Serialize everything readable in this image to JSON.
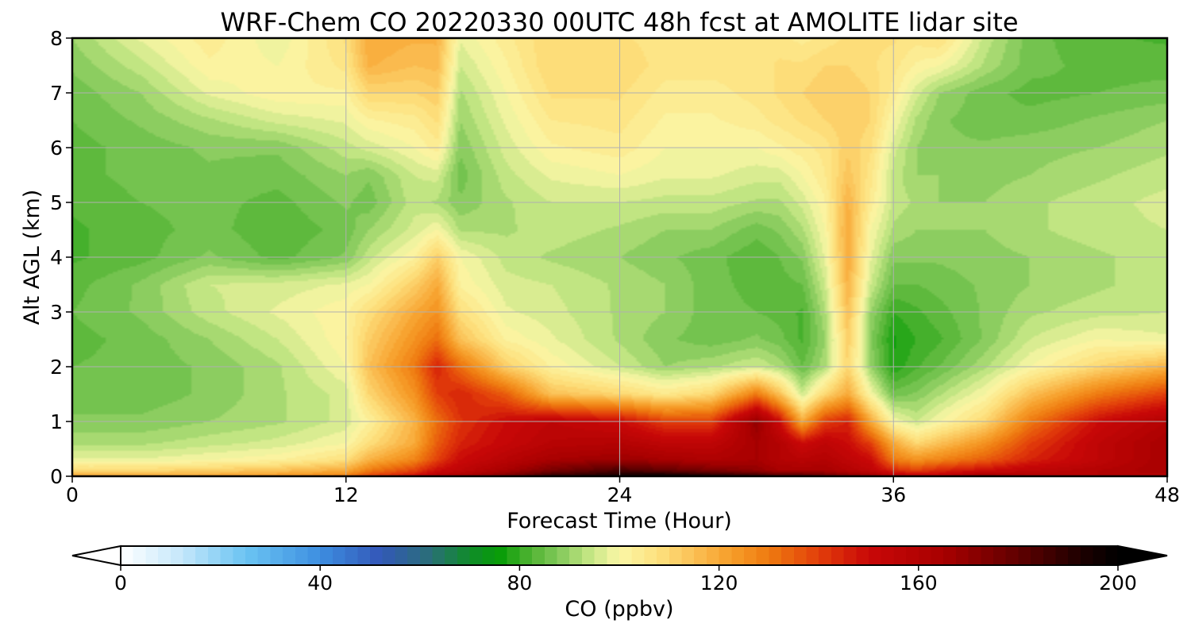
{
  "chart_data": {
    "type": "heatmap",
    "title": "WRF-Chem CO  20220330 00UTC 48h fcst at AMOLITE lidar site",
    "xlabel": "Forecast Time (Hour)",
    "ylabel": "Alt AGL (km)",
    "xlim": [
      0,
      48
    ],
    "ylim": [
      0,
      8
    ],
    "x_ticks": [
      0,
      12,
      24,
      36,
      48
    ],
    "y_ticks": [
      0,
      1,
      2,
      3,
      4,
      5,
      6,
      7,
      8
    ],
    "grid": true,
    "x": [
      0,
      3,
      6,
      9,
      12,
      13,
      15,
      16,
      17,
      19,
      21,
      24,
      26,
      28,
      30,
      31,
      32,
      33,
      34,
      35,
      36,
      37,
      38,
      40,
      42,
      45,
      48
    ],
    "y": [
      0,
      0.1,
      0.3,
      0.6,
      1.0,
      1.5,
      2.0,
      2.5,
      3.0,
      3.5,
      4.0,
      4.5,
      5.0,
      5.5,
      6.0,
      6.5,
      7.0,
      7.5,
      8.0
    ],
    "values": [
      [
        120,
        120,
        122,
        125,
        130,
        140,
        150,
        160,
        165,
        175,
        190,
        195,
        200,
        195,
        190,
        185,
        185,
        180,
        175,
        170,
        160,
        155,
        155,
        170,
        160,
        160,
        160
      ],
      [
        110,
        110,
        112,
        115,
        120,
        130,
        140,
        150,
        155,
        165,
        175,
        185,
        180,
        175,
        170,
        165,
        165,
        165,
        160,
        155,
        145,
        140,
        145,
        150,
        155,
        160,
        165
      ],
      [
        98,
        98,
        100,
        102,
        108,
        118,
        128,
        140,
        150,
        158,
        165,
        168,
        165,
        162,
        165,
        160,
        158,
        160,
        155,
        150,
        130,
        125,
        128,
        135,
        145,
        155,
        165
      ],
      [
        92,
        92,
        94,
        96,
        100,
        108,
        120,
        135,
        145,
        152,
        158,
        160,
        155,
        155,
        165,
        160,
        150,
        155,
        150,
        140,
        120,
        110,
        115,
        125,
        140,
        155,
        165
      ],
      [
        88,
        88,
        90,
        92,
        96,
        102,
        118,
        132,
        142,
        150,
        155,
        150,
        140,
        140,
        170,
        150,
        120,
        140,
        145,
        120,
        100,
        95,
        100,
        110,
        130,
        150,
        160
      ],
      [
        86,
        86,
        88,
        92,
        96,
        110,
        125,
        140,
        145,
        135,
        115,
        110,
        105,
        110,
        130,
        115,
        95,
        110,
        120,
        100,
        86,
        88,
        92,
        100,
        115,
        130,
        140
      ],
      [
        85,
        86,
        88,
        92,
        100,
        115,
        130,
        145,
        132,
        112,
        102,
        95,
        90,
        92,
        95,
        92,
        85,
        92,
        110,
        90,
        78,
        82,
        85,
        92,
        100,
        110,
        118
      ],
      [
        84,
        86,
        90,
        95,
        102,
        112,
        125,
        132,
        115,
        102,
        98,
        92,
        88,
        86,
        88,
        86,
        82,
        90,
        112,
        88,
        77,
        80,
        82,
        88,
        95,
        100,
        98
      ],
      [
        85,
        88,
        94,
        98,
        102,
        108,
        120,
        125,
        108,
        98,
        96,
        92,
        90,
        86,
        85,
        84,
        82,
        92,
        115,
        90,
        80,
        82,
        84,
        88,
        92,
        94,
        95
      ],
      [
        84,
        88,
        95,
        96,
        98,
        100,
        112,
        120,
        102,
        96,
        95,
        92,
        90,
        86,
        84,
        84,
        85,
        95,
        118,
        95,
        85,
        85,
        86,
        88,
        90,
        92,
        94
      ],
      [
        82,
        84,
        88,
        84,
        88,
        94,
        102,
        112,
        100,
        94,
        92,
        90,
        88,
        86,
        83,
        85,
        88,
        98,
        120,
        98,
        88,
        88,
        88,
        89,
        90,
        92,
        94
      ],
      [
        82,
        84,
        86,
        83,
        86,
        90,
        96,
        100,
        92,
        92,
        94,
        92,
        90,
        90,
        86,
        88,
        92,
        100,
        120,
        100,
        92,
        90,
        90,
        90,
        92,
        94,
        95
      ],
      [
        83,
        85,
        86,
        84,
        88,
        86,
        94,
        92,
        88,
        92,
        95,
        95,
        94,
        94,
        92,
        92,
        96,
        102,
        118,
        104,
        94,
        92,
        90,
        90,
        92,
        94,
        96
      ],
      [
        84,
        86,
        87,
        86,
        90,
        88,
        95,
        96,
        86,
        94,
        98,
        100,
        98,
        98,
        96,
        96,
        100,
        105,
        114,
        106,
        94,
        90,
        90,
        89,
        90,
        92,
        94
      ],
      [
        84,
        86,
        88,
        88,
        94,
        96,
        100,
        104,
        88,
        96,
        102,
        104,
        100,
        100,
        100,
        102,
        104,
        106,
        112,
        108,
        96,
        90,
        88,
        88,
        89,
        90,
        92
      ],
      [
        85,
        88,
        92,
        96,
        98,
        102,
        104,
        108,
        90,
        98,
        105,
        106,
        102,
        102,
        104,
        106,
        108,
        110,
        112,
        110,
        100,
        92,
        88,
        86,
        86,
        88,
        90
      ],
      [
        86,
        90,
        98,
        102,
        102,
        110,
        110,
        112,
        92,
        100,
        108,
        108,
        104,
        104,
        106,
        108,
        110,
        112,
        112,
        110,
        104,
        96,
        90,
        86,
        84,
        85,
        86
      ],
      [
        88,
        94,
        102,
        100,
        106,
        118,
        115,
        116,
        95,
        102,
        110,
        110,
        106,
        106,
        106,
        108,
        108,
        110,
        110,
        108,
        106,
        102,
        100,
        92,
        86,
        84,
        84
      ],
      [
        90,
        98,
        104,
        98,
        108,
        120,
        118,
        118,
        98,
        104,
        110,
        108,
        106,
        106,
        106,
        106,
        104,
        106,
        108,
        108,
        108,
        106,
        108,
        94,
        86,
        83,
        82
      ]
    ],
    "colorbar": {
      "label": "CO  (ppbv)",
      "min": 0,
      "max": 200,
      "ticks": [
        0,
        40,
        80,
        120,
        160,
        200
      ],
      "extend": "both",
      "colormap": [
        [
          0,
          "#ffffff"
        ],
        [
          12,
          "#c6e8fb"
        ],
        [
          25,
          "#6bc4f2"
        ],
        [
          40,
          "#3d8ee0"
        ],
        [
          52,
          "#3358b8"
        ],
        [
          62,
          "#2a6e78"
        ],
        [
          70,
          "#108c2a"
        ],
        [
          76,
          "#079c07"
        ],
        [
          82,
          "#4eb331"
        ],
        [
          88,
          "#84c95b"
        ],
        [
          94,
          "#c4e684"
        ],
        [
          100,
          "#fbf7a6"
        ],
        [
          108,
          "#fde07d"
        ],
        [
          115,
          "#fbc055"
        ],
        [
          122,
          "#f7a02b"
        ],
        [
          130,
          "#ef7a10"
        ],
        [
          140,
          "#e23e0a"
        ],
        [
          150,
          "#c90808"
        ],
        [
          165,
          "#a80000"
        ],
        [
          180,
          "#600000"
        ],
        [
          192,
          "#200000"
        ],
        [
          200,
          "#000000"
        ]
      ]
    }
  }
}
